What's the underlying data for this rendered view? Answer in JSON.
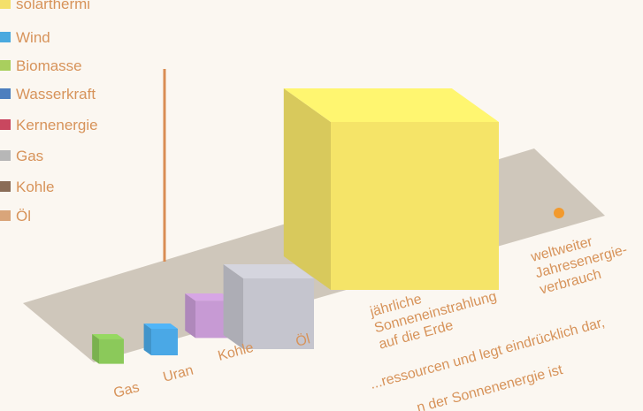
{
  "legend": {
    "items": [
      {
        "label": "solarthermi",
        "color": "#f4e06b"
      },
      {
        "label": "Wind",
        "color": "#4aa9df"
      },
      {
        "label": "Biomasse",
        "color": "#a9cf5e"
      },
      {
        "label": "Wasserkraft",
        "color": "#4d7fbe"
      },
      {
        "label": "Kernenergie",
        "color": "#c9475f"
      },
      {
        "label": "Gas",
        "color": "#b7b7b7"
      },
      {
        "label": "Kohle",
        "color": "#8a6d58"
      },
      {
        "label": "Öl",
        "color": "#d9a57a"
      }
    ]
  },
  "chart_data": {
    "type": "bar",
    "categories": [
      "Gas",
      "Uran",
      "Kohle",
      "Öl",
      "jährliche Sonneneinstrahlung auf die Erde",
      "weltweiter Jahresenergie-verbrauch"
    ],
    "series": [
      {
        "values": [
          1,
          1.3,
          1.9,
          3.5,
          100,
          0.2
        ]
      }
    ],
    "colors": [
      "#8bc95a",
      "#4aa8e6",
      "#c79ad4",
      "#c5c5ce",
      "#f5e468",
      "#f29a2e"
    ],
    "category_lines": [
      [
        "Gas"
      ],
      [
        "Uran"
      ],
      [
        "Kohle"
      ],
      [
        "Öl"
      ],
      [
        "jährliche",
        "Sonneneinstrahlung",
        "auf die Erde"
      ],
      [
        "weltweiter",
        "Jahresenergie-",
        "verbrauch"
      ]
    ]
  },
  "bottom_text": {
    "line1": "...ressourcen und legt eindrücklich dar,",
    "line2": "...n der Sonnenenergie ist"
  }
}
